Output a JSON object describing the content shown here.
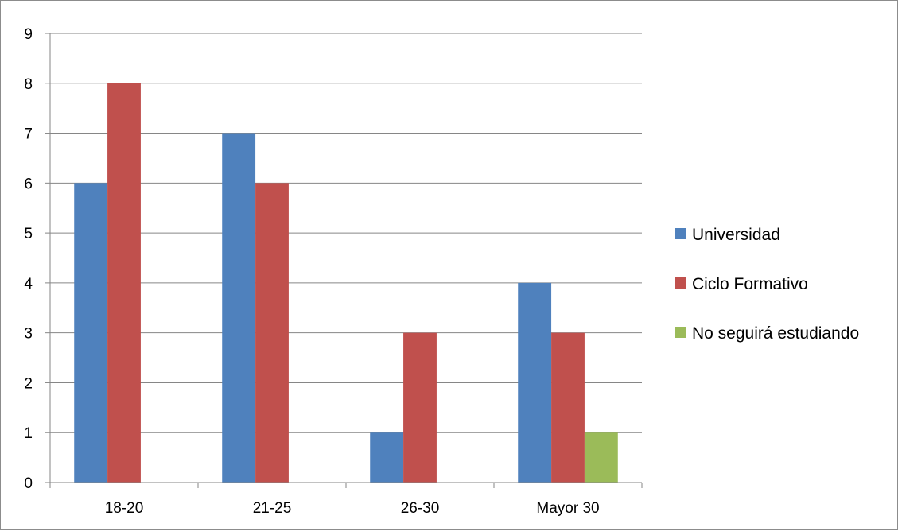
{
  "chart_data": {
    "type": "bar",
    "categories": [
      "18-20",
      "21-25",
      "26-30",
      "Mayor 30"
    ],
    "series": [
      {
        "name": "Universidad",
        "values": [
          6,
          7,
          1,
          4
        ],
        "color": "#4f81bd"
      },
      {
        "name": "Ciclo Formativo",
        "values": [
          8,
          6,
          3,
          3
        ],
        "color": "#c0504d"
      },
      {
        "name": "No seguirá estudiando",
        "values": [
          0,
          0,
          0,
          1
        ],
        "color": "#9bbb59"
      }
    ],
    "ylim": [
      0,
      9
    ],
    "yticks": [
      "0",
      "1",
      "2",
      "3",
      "4",
      "5",
      "6",
      "7",
      "8",
      "9"
    ],
    "grid": true,
    "legend_position": "right",
    "title": "",
    "xlabel": "",
    "ylabel": ""
  }
}
